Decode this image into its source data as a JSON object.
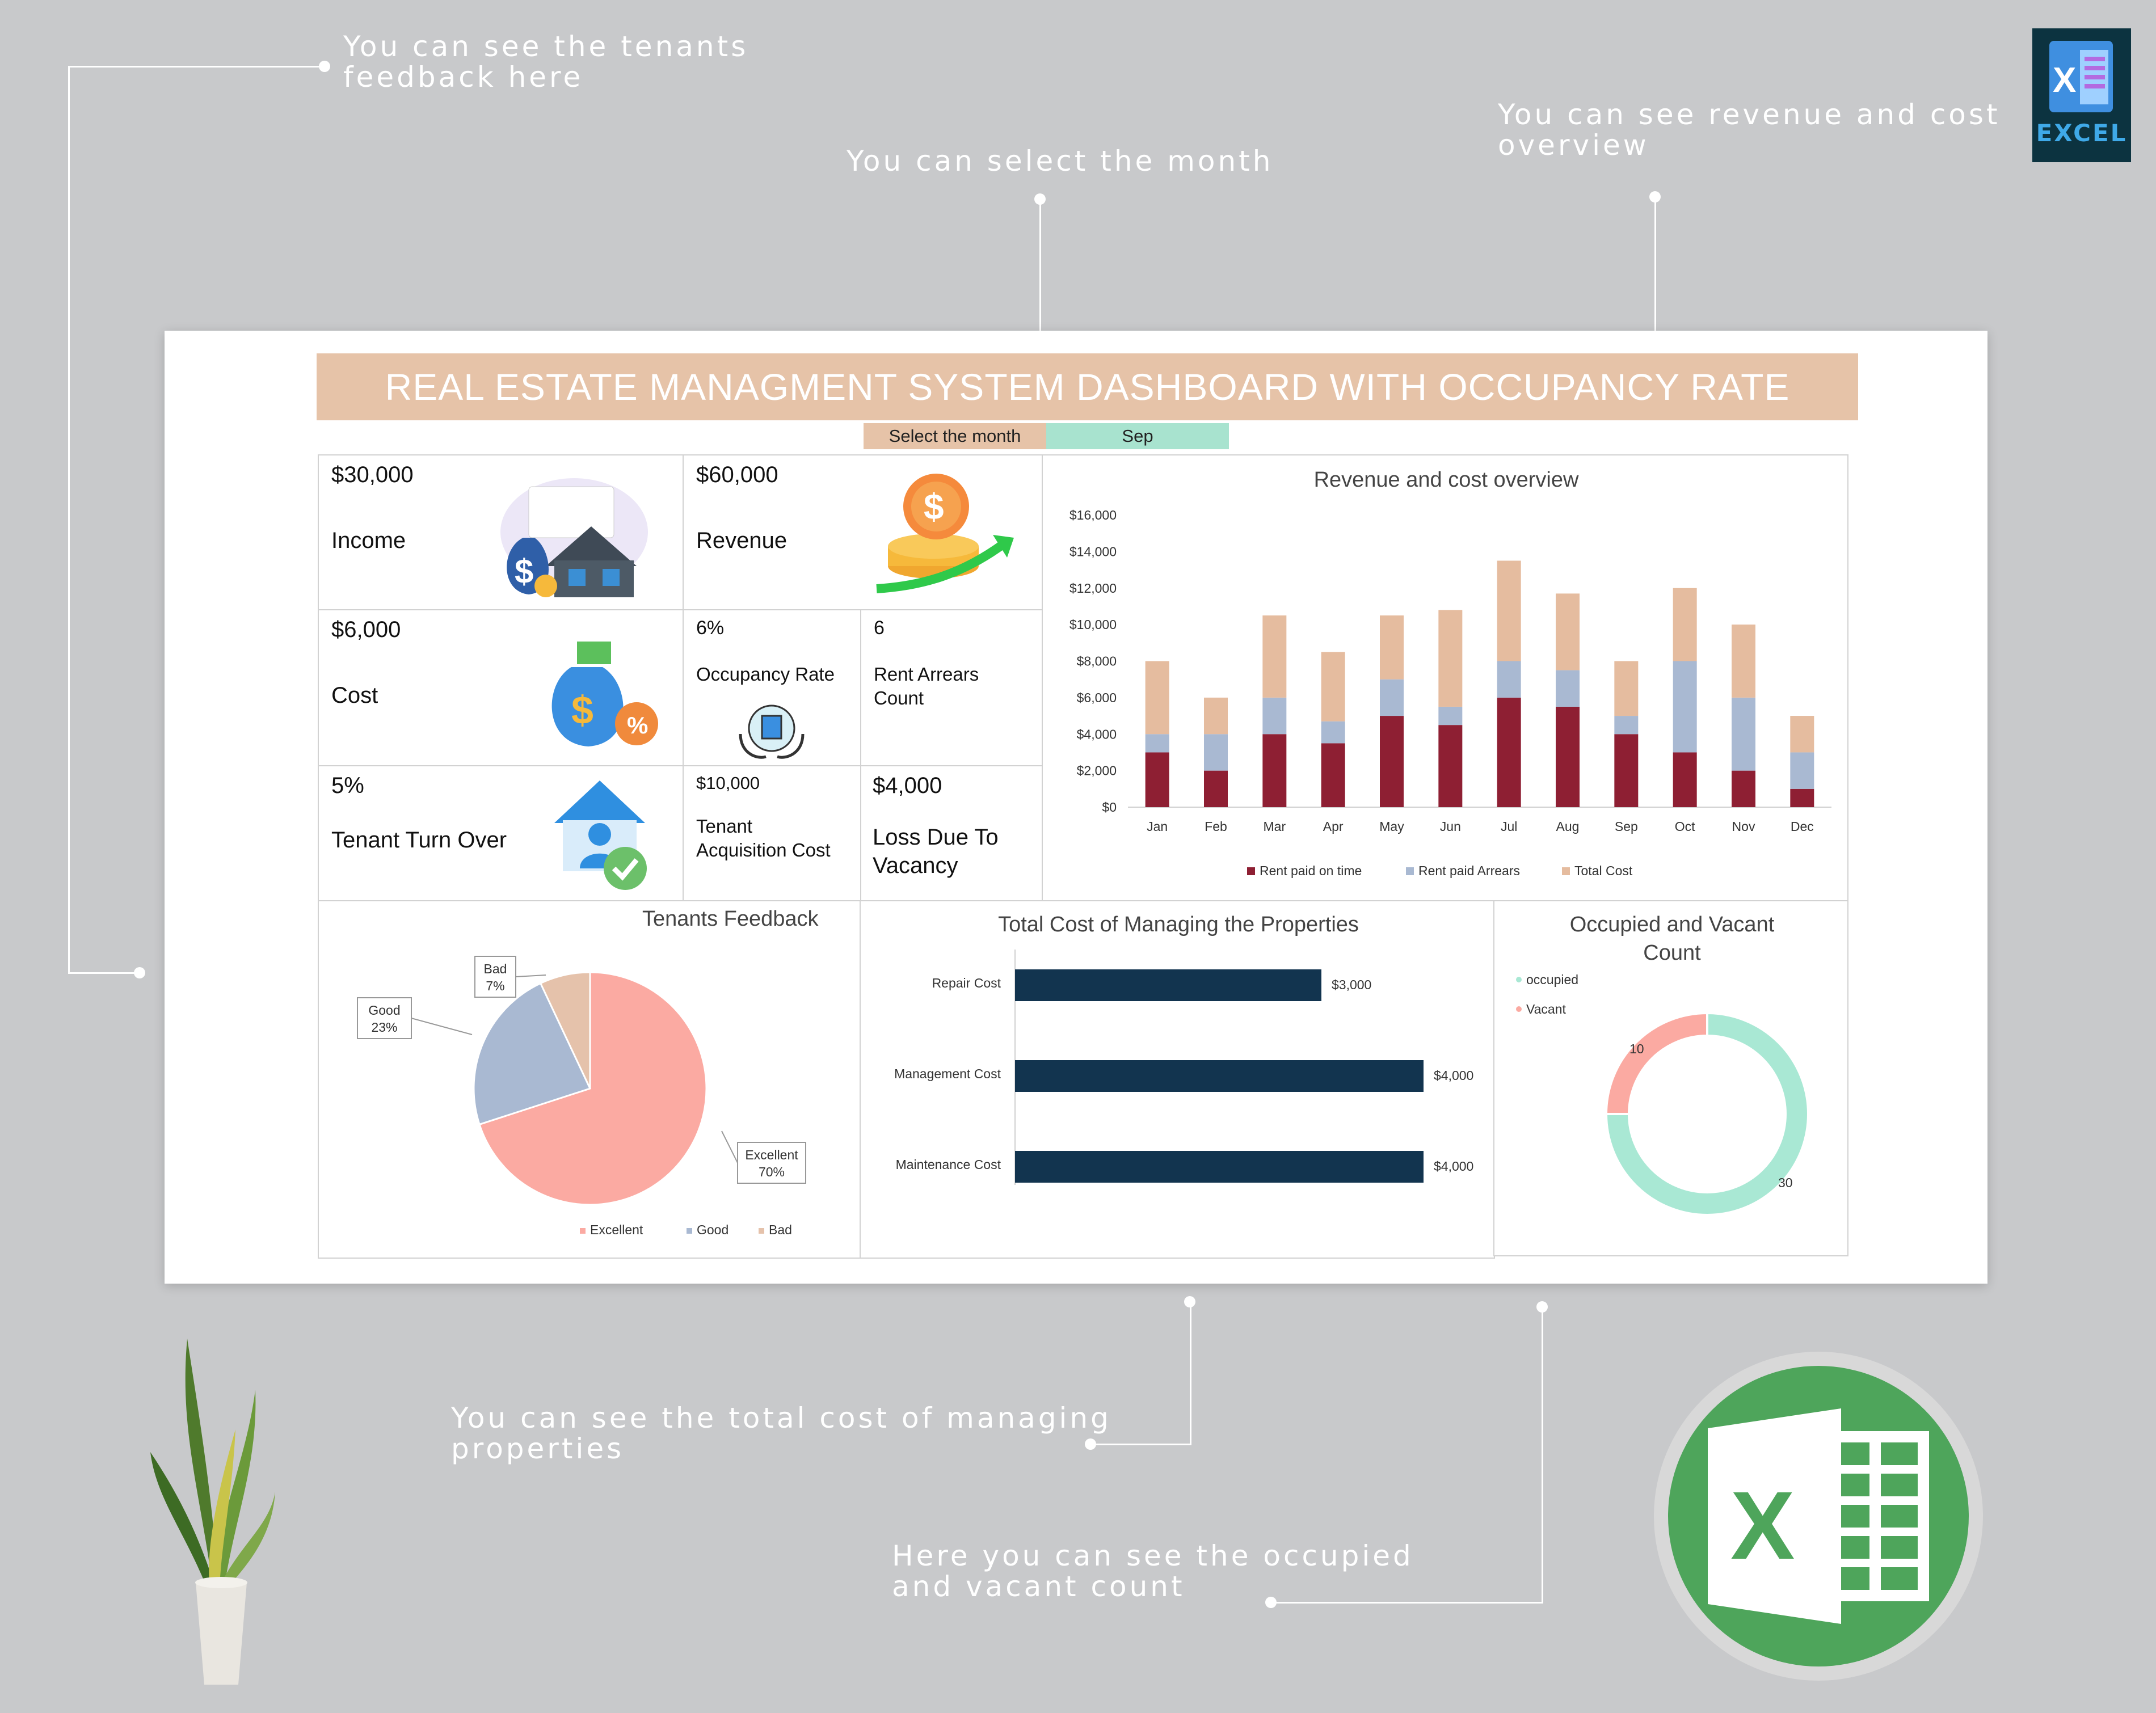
{
  "annotations": {
    "feedback": "You can see the tenants\nfeedback here",
    "month": "You can select the month",
    "revenue": "You can see revenue and cost\noverview",
    "total_cost": "You can see the total cost of managing\nproperties",
    "occupied": "Here you can see the occupied\nand vacant count"
  },
  "badge": {
    "label": "EXCEL"
  },
  "dashboard": {
    "title": "REAL ESTATE MANAGMENT SYSTEM DASHBOARD WITH OCCUPANCY RATE",
    "month_selector": {
      "label": "Select the month",
      "value": "Sep"
    },
    "kpis": {
      "income": {
        "value": "$30,000",
        "label": "Income"
      },
      "revenue": {
        "value": "$60,000",
        "label": "Revenue"
      },
      "cost": {
        "value": "$6,000",
        "label": "Cost"
      },
      "occupancy": {
        "value": "6%",
        "label": "Occupancy Rate"
      },
      "arrears": {
        "value": "6",
        "label": "Rent Arrears\nCount"
      },
      "turnover": {
        "value": "5%",
        "label": "Tenant Turn Over"
      },
      "acquisition": {
        "value": "$10,000",
        "label": "Tenant\nAcquisition Cost"
      },
      "vacancy_loss": {
        "value": "$4,000",
        "label": "Loss Due To\nVacancy"
      }
    }
  },
  "colors": {
    "rent_on_time": "#8e1f33",
    "rent_arrears": "#a9b9d2",
    "total_cost": "#e5bc9f",
    "excellent": "#fbaaa2",
    "good": "#a9b9d2",
    "bad": "#e5c2ab",
    "bar": "#12344f",
    "occupied": "#a9e8d4",
    "vacant": "#fbaaa2"
  },
  "chart_data": [
    {
      "type": "bar",
      "stacked": true,
      "title": "Revenue and cost overview",
      "categories": [
        "Jan",
        "Feb",
        "Mar",
        "Apr",
        "May",
        "Jun",
        "Jul",
        "Aug",
        "Sep",
        "Oct",
        "Nov",
        "Dec"
      ],
      "series": [
        {
          "name": "Rent paid on time",
          "values": [
            3000,
            2000,
            4000,
            3500,
            5000,
            4500,
            6000,
            5500,
            4000,
            3000,
            2000,
            1000
          ]
        },
        {
          "name": "Rent paid Arrears",
          "values": [
            1000,
            2000,
            2000,
            1200,
            2000,
            1000,
            2000,
            2000,
            1000,
            5000,
            4000,
            2000
          ]
        },
        {
          "name": "Total Cost",
          "values": [
            4000,
            2000,
            4500,
            3800,
            3500,
            5300,
            5500,
            4200,
            3000,
            4000,
            4000,
            2000
          ]
        }
      ],
      "ylim": [
        0,
        16000
      ],
      "yticks": [
        "$0",
        "$2,000",
        "$4,000",
        "$6,000",
        "$8,000",
        "$10,000",
        "$12,000",
        "$14,000",
        "$16,000"
      ],
      "legend": "bottom"
    },
    {
      "type": "pie",
      "title": "Tenants Feedback",
      "categories": [
        "Excellent",
        "Good",
        "Bad"
      ],
      "values": [
        70,
        23,
        7
      ],
      "labels": [
        [
          "Excellent",
          "70%"
        ],
        [
          "Good",
          "23%"
        ],
        [
          "Bad",
          "7%"
        ]
      ],
      "legend": "bottom"
    },
    {
      "type": "bar",
      "orientation": "horizontal",
      "title": "Total Cost of Managing the Properties",
      "categories": [
        "Repair Cost",
        "Management Cost",
        "Maintenance Cost"
      ],
      "values": [
        3000,
        4000,
        4000
      ],
      "value_labels": [
        "$3,000",
        "$4,000",
        "$4,000"
      ]
    },
    {
      "type": "pie",
      "donut": true,
      "title": "Occupied and Vacant\nCount",
      "categories": [
        "occupied",
        "Vacant"
      ],
      "values": [
        30,
        10
      ],
      "value_labels": [
        "30",
        "10"
      ],
      "legend": "top-left"
    }
  ]
}
